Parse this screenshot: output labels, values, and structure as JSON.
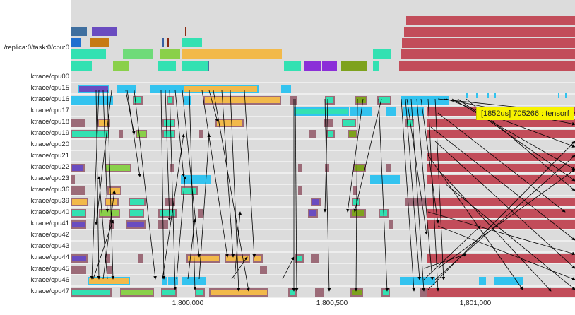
{
  "app": {
    "colors": {
      "background": "#dcdcdc",
      "row_separator": "#ffffff",
      "red": "#c24d5a",
      "teal": "#33e1b2",
      "cyan": "#33c3ef",
      "orange": "#f2b94a",
      "purple": "#6a4cc0",
      "green": "#8ad04a",
      "olive": "#7ea21d",
      "mauve": "#9c6b78",
      "arrow": "#000000",
      "tooltip_bg": "#f7f200"
    }
  },
  "rows": {
    "header_label": "/replica:0/task:0/cpu:0",
    "cpu_labels": [
      "ktrace/cpu00",
      "ktrace/cpu15",
      "ktrace/cpu16",
      "ktrace/cpu17",
      "ktrace/cpu18",
      "ktrace/cpu19",
      "ktrace/cpu20",
      "ktrace/cpu21",
      "ktrace/cpu22",
      "ktrace/cpu23",
      "ktrace/cpu36",
      "ktrace/cpu39",
      "ktrace/cpu40",
      "ktrace/cpu41",
      "ktrace/cpu42",
      "ktrace/cpu43",
      "ktrace/cpu44",
      "ktrace/cpu45",
      "ktrace/cpu46",
      "ktrace/cpu47"
    ]
  },
  "axis": {
    "ticks": [
      "1,800,000",
      "1,800,500",
      "1,801,000"
    ]
  },
  "tooltip": {
    "text": "[1852us] 705266 : tensorf"
  }
}
